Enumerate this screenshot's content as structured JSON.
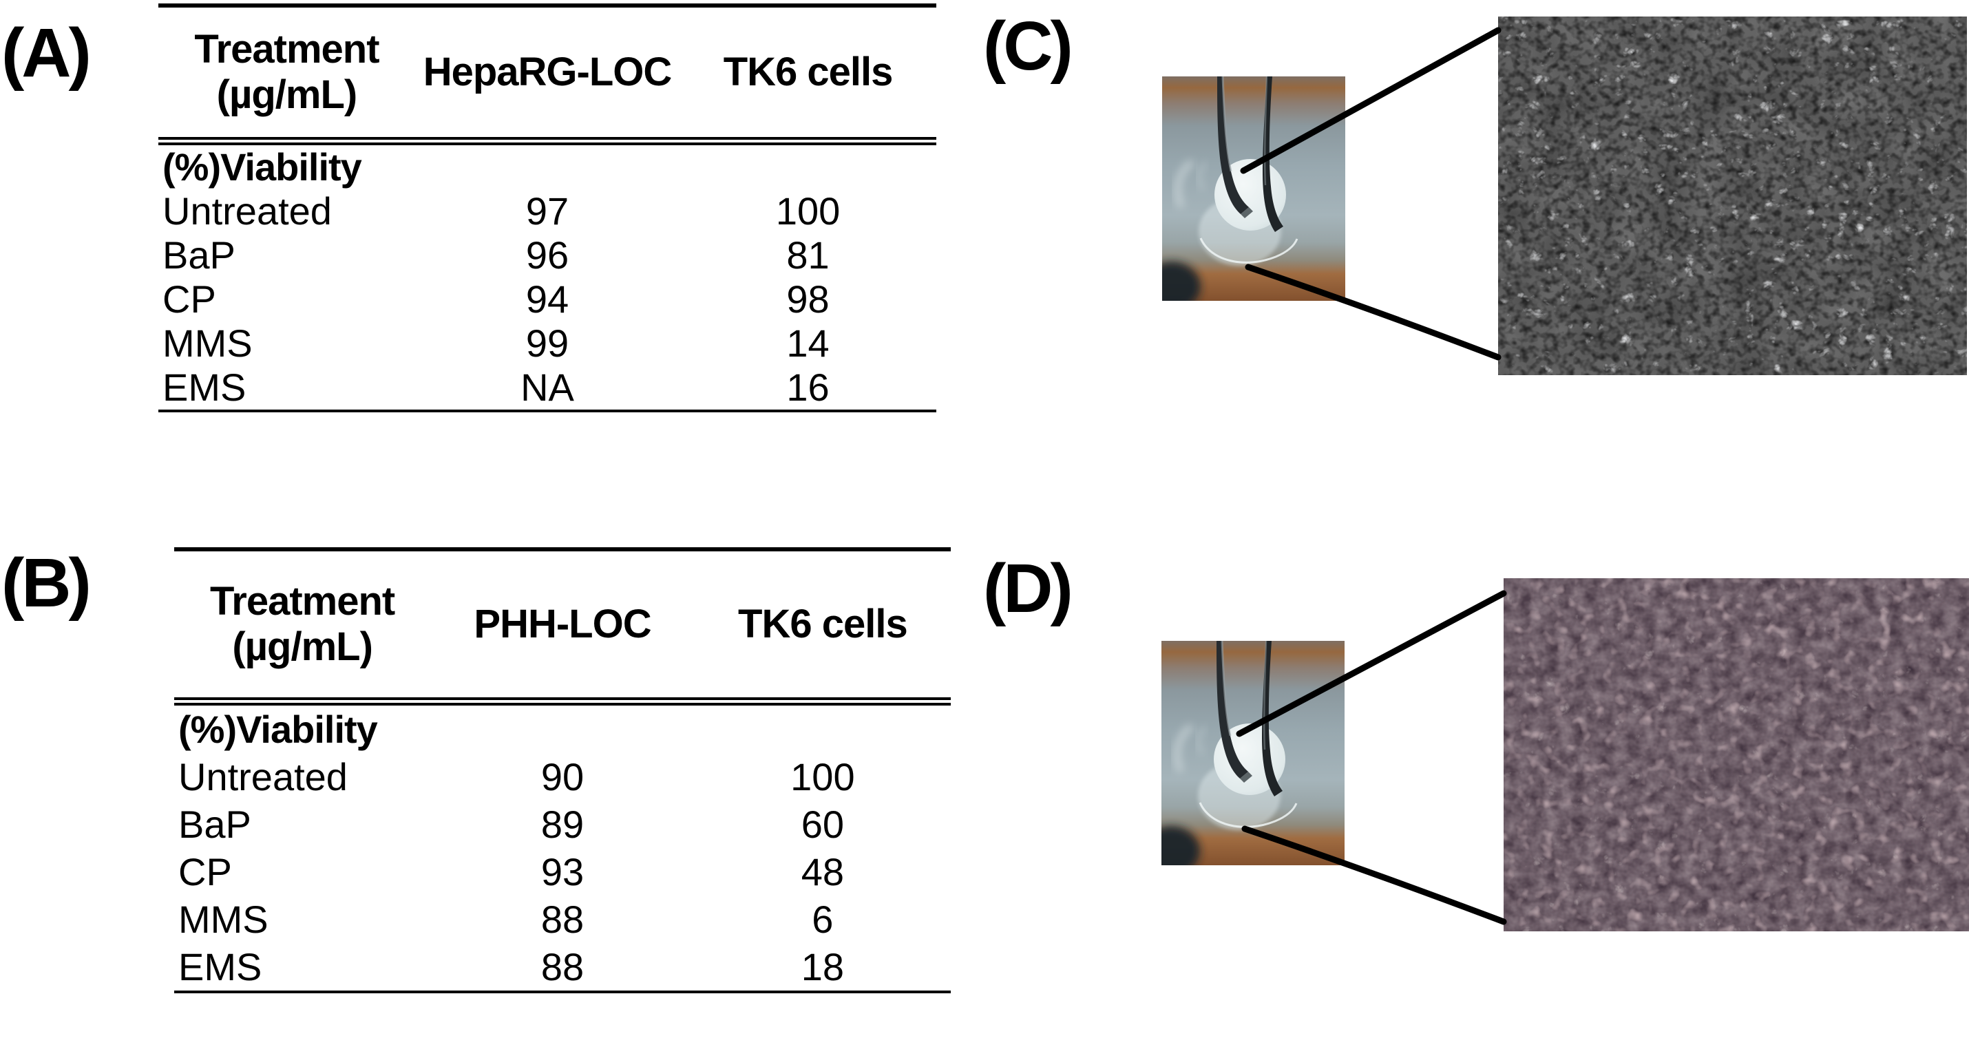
{
  "figure": {
    "panel_a": {
      "label": "(A)",
      "table": {
        "header": {
          "col1_line1": "Treatment",
          "col1_line2": "(µg/mL)",
          "col2": "HepaRG-LOC",
          "col3": "TK6 cells"
        },
        "section": "(%)Viability",
        "rows": [
          {
            "treatment": "Untreated",
            "loc": "97",
            "tk6": "100"
          },
          {
            "treatment": "BaP",
            "loc": "96",
            "tk6": "81"
          },
          {
            "treatment": "CP",
            "loc": "94",
            "tk6": "98"
          },
          {
            "treatment": "MMS",
            "loc": "99",
            "tk6": "14"
          },
          {
            "treatment": "EMS",
            "loc": "NA",
            "tk6": "16"
          }
        ]
      }
    },
    "panel_b": {
      "label": "(B)",
      "table": {
        "header": {
          "col1_line1": "Treatment",
          "col1_line2": "(µg/mL)",
          "col2": "PHH-LOC",
          "col3": "TK6 cells"
        },
        "section": "(%)Viability",
        "rows": [
          {
            "treatment": "Untreated",
            "loc": "90",
            "tk6": "100"
          },
          {
            "treatment": "BaP",
            "loc": "89",
            "tk6": "60"
          },
          {
            "treatment": "CP",
            "loc": "93",
            "tk6": "48"
          },
          {
            "treatment": "MMS",
            "loc": "88",
            "tk6": "6"
          },
          {
            "treatment": "EMS",
            "loc": "88",
            "tk6": "18"
          }
        ]
      }
    },
    "panel_c": {
      "label": "(C)"
    },
    "panel_d": {
      "label": "(D)"
    }
  },
  "colors": {
    "text": "#000000",
    "photo_background_blue": "#98a8af",
    "photo_band_orange": "#96683f",
    "membrane_white": "#e8eff0",
    "micrograph_c_tone": "#9a9a9a",
    "micrograph_d_tone": "#9a7c82"
  },
  "chart_data": [
    {
      "type": "table",
      "title": "(A) Viability of HepaRG-LOC vs TK6 cells",
      "columns": [
        "Treatment (µg/mL)",
        "HepaRG-LOC",
        "TK6 cells"
      ],
      "section": "(%)Viability",
      "rows": [
        [
          "Untreated",
          "97",
          "100"
        ],
        [
          "BaP",
          "96",
          "81"
        ],
        [
          "CP",
          "94",
          "98"
        ],
        [
          "MMS",
          "99",
          "14"
        ],
        [
          "EMS",
          "NA",
          "16"
        ]
      ]
    },
    {
      "type": "table",
      "title": "(B) Viability of PHH-LOC vs TK6 cells",
      "columns": [
        "Treatment (µg/mL)",
        "PHH-LOC",
        "TK6 cells"
      ],
      "section": "(%)Viability",
      "rows": [
        [
          "Untreated",
          "90",
          "100"
        ],
        [
          "BaP",
          "89",
          "60"
        ],
        [
          "CP",
          "93",
          "48"
        ],
        [
          "MMS",
          "88",
          "6"
        ],
        [
          "EMS",
          "88",
          "18"
        ]
      ]
    }
  ]
}
